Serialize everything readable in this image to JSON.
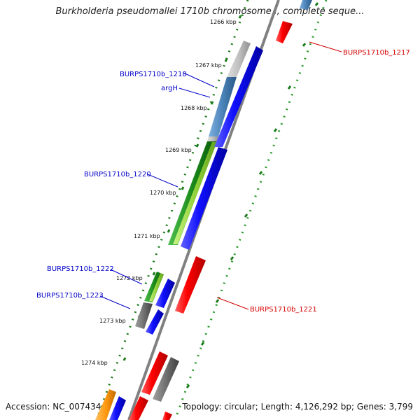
{
  "title": "Burkholderia pseudomallei 1710b chromosome I, complete seque...",
  "footer": {
    "accession": "Accession: NC_007434",
    "summary": "Topology: circular; Length: 4,126,292 bp; Genes: 3,799"
  },
  "scale_labels": [
    "1266 kbp",
    "1267 kbp",
    "1268 kbp",
    "1269 kbp",
    "1270 kbp",
    "1271 kbp",
    "1272 kbp",
    "1273 kbp",
    "1274 kbp"
  ],
  "gene_labels": [
    {
      "text": "BURPS1710b_1217",
      "color": "#d40000"
    },
    {
      "text": "BURPS1710b_1218",
      "color": "#0000c8"
    },
    {
      "text": "argH",
      "color": "#0000c8"
    },
    {
      "text": "BURPS1710b_1220",
      "color": "#0000c8"
    },
    {
      "text": "BURPS1710b_1222",
      "color": "#0000c8"
    },
    {
      "text": "BURPS1710b_1223",
      "color": "#0000c8"
    },
    {
      "text": "BURPS1710b_1221",
      "color": "#d40000"
    }
  ],
  "colors": {
    "forward_strand": "#1010ff",
    "reverse_strand": "#ff1010",
    "tick_outer": "#1a7a1a",
    "tick_inner": "#2a9a2a",
    "backbone": "#808080"
  }
}
